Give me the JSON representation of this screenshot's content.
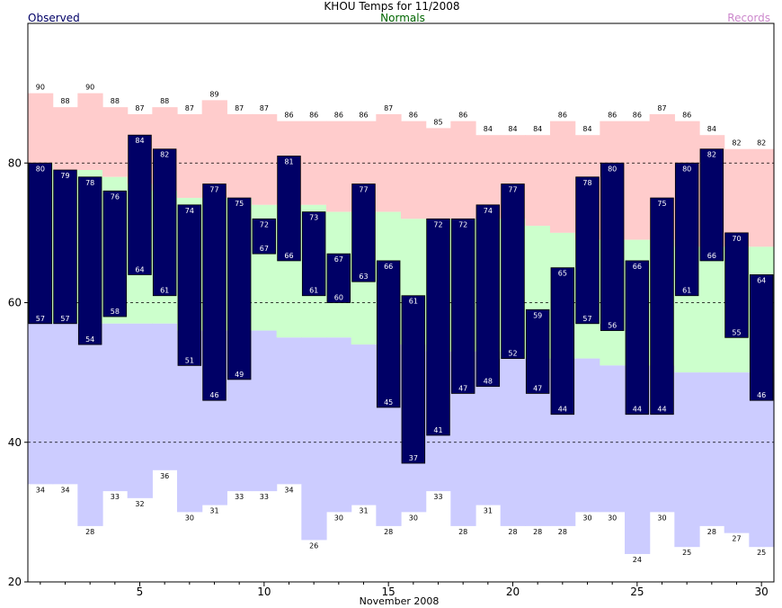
{
  "chart_data": {
    "type": "bar",
    "title": "KHOU Temps for 11/2008",
    "xlabel": "November 2008",
    "ylabel": "",
    "legend": {
      "observed": "Observed",
      "normals": "Normals",
      "records": "Records"
    },
    "colors": {
      "observed_bar": "#000066",
      "observed_label": "#ffffff",
      "normal_band": "#ccffcc",
      "record_high_area": "#ffcccc",
      "record_low_area": "#ccccff",
      "title_observed": "#000066",
      "title_normals": "#006600",
      "title_records": "#cc88cc",
      "gridline": "#000000"
    },
    "ylim": [
      20,
      100
    ],
    "y_ticks": [
      20,
      40,
      60,
      80
    ],
    "x_ticks": [
      5,
      10,
      15,
      20,
      25,
      30
    ],
    "grid_y_dashed": [
      40,
      60,
      80
    ],
    "days": [
      1,
      2,
      3,
      4,
      5,
      6,
      7,
      8,
      9,
      10,
      11,
      12,
      13,
      14,
      15,
      16,
      17,
      18,
      19,
      20,
      21,
      22,
      23,
      24,
      25,
      26,
      27,
      28,
      29,
      30
    ],
    "observed_high": [
      80,
      79,
      78,
      76,
      84,
      82,
      74,
      77,
      75,
      72,
      81,
      73,
      67,
      77,
      66,
      61,
      72,
      72,
      74,
      77,
      59,
      65,
      78,
      80,
      66,
      75,
      80,
      82,
      70,
      64
    ],
    "observed_low": [
      57,
      57,
      54,
      58,
      64,
      61,
      51,
      46,
      49,
      67,
      66,
      61,
      60,
      63,
      45,
      37,
      41,
      47,
      48,
      52,
      47,
      44,
      57,
      56,
      44,
      44,
      61,
      66,
      55,
      46
    ],
    "normal_high": [
      80,
      79,
      79,
      78,
      77,
      76,
      75,
      75,
      75,
      74,
      74,
      74,
      73,
      73,
      73,
      72,
      72,
      72,
      72,
      72,
      71,
      70,
      69,
      69,
      69,
      69,
      68,
      68,
      68,
      68
    ],
    "normal_low": [
      57,
      57,
      57,
      57,
      57,
      57,
      56,
      56,
      56,
      56,
      55,
      55,
      55,
      54,
      54,
      54,
      53,
      53,
      53,
      52,
      52,
      52,
      52,
      51,
      51,
      51,
      50,
      50,
      50,
      50
    ],
    "record_high": [
      90,
      88,
      90,
      88,
      87,
      88,
      87,
      89,
      87,
      87,
      86,
      86,
      86,
      86,
      87,
      86,
      85,
      86,
      84,
      84,
      84,
      86,
      84,
      86,
      86,
      87,
      86,
      84,
      82,
      82
    ],
    "record_low": [
      34,
      34,
      28,
      33,
      32,
      36,
      30,
      31,
      33,
      33,
      34,
      26,
      30,
      31,
      28,
      30,
      33,
      28,
      31,
      28,
      28,
      28,
      30,
      30,
      24,
      30,
      25,
      28,
      27,
      25
    ]
  }
}
